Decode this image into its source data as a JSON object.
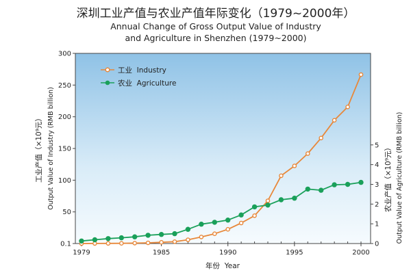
{
  "chart_data": {
    "type": "line",
    "title": "深圳工业产值与农业产值年际变化（1979~2000年）",
    "subtitle_lines": [
      "Annual Change of Gross Output Value of Industry",
      "and Agriculture in Shenzhen (1979~2000)"
    ],
    "xlabel": "年份  Year",
    "ylabel_left_cn": "工业产值（×10⁹元）",
    "ylabel_left_en": "Output Value of Industry (RMB billion)",
    "ylabel_right_cn": "农业产值（×10⁹元）",
    "ylabel_right_en": "Output Value of Agriculture (RMB billion)",
    "x": [
      1979,
      1980,
      1981,
      1982,
      1983,
      1984,
      1985,
      1986,
      1987,
      1988,
      1989,
      1990,
      1991,
      1992,
      1993,
      1994,
      1995,
      1996,
      1997,
      1998,
      1999,
      2000
    ],
    "x_ticks": [
      "1979",
      "1985",
      "1990",
      "1995",
      "2000"
    ],
    "ylim_left": [
      0.1,
      300
    ],
    "y_ticks_left": [
      "0.1",
      "50",
      "100",
      "150",
      "200",
      "250",
      "300"
    ],
    "ylim_right": [
      0,
      9.64
    ],
    "y_ticks_right": [
      "0",
      "1",
      "2",
      "3",
      "4",
      "5"
    ],
    "legend_position": "top-left",
    "series": [
      {
        "name": "工业  Industry",
        "axis": "left",
        "color": "#e8883a",
        "values": [
          0.1,
          0.2,
          0.3,
          0.4,
          0.7,
          1.2,
          2.0,
          3.0,
          6.0,
          10.5,
          15.5,
          22.5,
          32.5,
          44.0,
          67.5,
          107.0,
          122.5,
          142.0,
          166.5,
          194.5,
          215.5,
          266.5
        ]
      },
      {
        "name": "农业  Agriculture",
        "axis": "right",
        "color": "#1aa05a",
        "values": [
          0.13,
          0.19,
          0.25,
          0.29,
          0.34,
          0.42,
          0.46,
          0.5,
          0.72,
          0.98,
          1.08,
          1.19,
          1.45,
          1.86,
          1.95,
          2.22,
          2.3,
          2.76,
          2.7,
          2.98,
          3.0,
          3.1
        ]
      }
    ]
  }
}
